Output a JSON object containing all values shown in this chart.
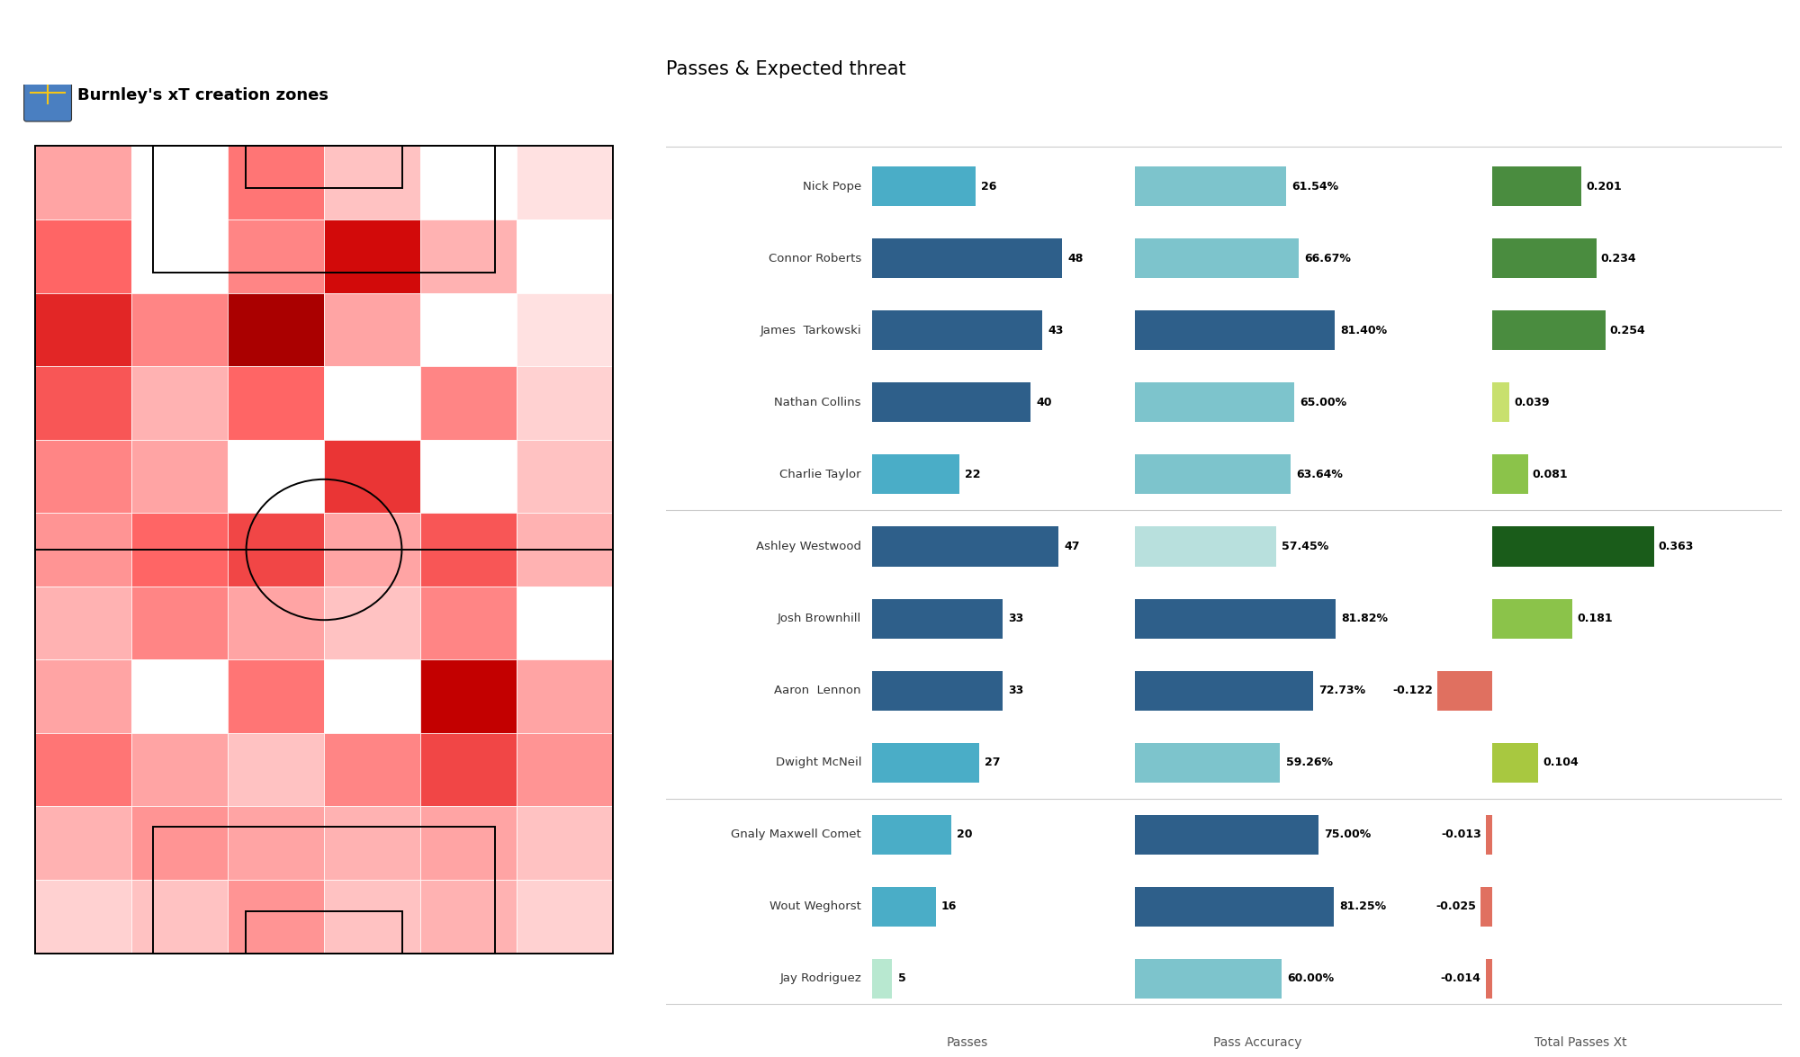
{
  "title_left": "Burnley's xT creation zones",
  "title_right": "Passes & Expected threat",
  "players": [
    {
      "name": "Nick Pope",
      "passes": 26,
      "pass_acc": 61.54,
      "xT": 0.201
    },
    {
      "name": "Connor Roberts",
      "passes": 48,
      "pass_acc": 66.67,
      "xT": 0.234
    },
    {
      "name": "James  Tarkowski",
      "passes": 43,
      "pass_acc": 81.4,
      "xT": 0.254
    },
    {
      "name": "Nathan Collins",
      "passes": 40,
      "pass_acc": 65.0,
      "xT": 0.039
    },
    {
      "name": "Charlie Taylor",
      "passes": 22,
      "pass_acc": 63.64,
      "xT": 0.081
    },
    {
      "name": "Ashley Westwood",
      "passes": 47,
      "pass_acc": 57.45,
      "xT": 0.363
    },
    {
      "name": "Josh Brownhill",
      "passes": 33,
      "pass_acc": 81.82,
      "xT": 0.181
    },
    {
      "name": "Aaron  Lennon",
      "passes": 33,
      "pass_acc": 72.73,
      "xT": -0.122
    },
    {
      "name": "Dwight McNeil",
      "passes": 27,
      "pass_acc": 59.26,
      "xT": 0.104
    },
    {
      "name": "Gnaly Maxwell Comet",
      "passes": 20,
      "pass_acc": 75.0,
      "xT": -0.013
    },
    {
      "name": "Wout Weghorst",
      "passes": 16,
      "pass_acc": 81.25,
      "xT": -0.025
    },
    {
      "name": "Jay Rodriguez",
      "passes": 5,
      "pass_acc": 60.0,
      "xT": -0.014
    }
  ],
  "passes_colors": {
    "Nick Pope": "#4aadc7",
    "Connor Roberts": "#2e5f8a",
    "James  Tarkowski": "#2e5f8a",
    "Nathan Collins": "#2e5f8a",
    "Charlie Taylor": "#4aadc7",
    "Ashley Westwood": "#2e5f8a",
    "Josh Brownhill": "#2e5f8a",
    "Aaron  Lennon": "#2e5f8a",
    "Dwight McNeil": "#4aadc7",
    "Gnaly Maxwell Comet": "#4aadc7",
    "Wout Weghorst": "#4aadc7",
    "Jay Rodriguez": "#b8e8d0"
  },
  "acc_colors": {
    "Nick Pope": "#7dc4cc",
    "Connor Roberts": "#7dc4cc",
    "James  Tarkowski": "#2e5f8a",
    "Nathan Collins": "#7dc4cc",
    "Charlie Taylor": "#7dc4cc",
    "Ashley Westwood": "#b8e0dd",
    "Josh Brownhill": "#2e5f8a",
    "Aaron  Lennon": "#2e5f8a",
    "Dwight McNeil": "#7dc4cc",
    "Gnaly Maxwell Comet": "#2e5f8a",
    "Wout Weghorst": "#2e5f8a",
    "Jay Rodriguez": "#7dc4cc"
  },
  "xT_colors": {
    "Nick Pope": "#4a8c3f",
    "Connor Roberts": "#4a8c3f",
    "James  Tarkowski": "#4a8c3f",
    "Nathan Collins": "#c8e06e",
    "Charlie Taylor": "#8bc34a",
    "Ashley Westwood": "#1a5c1a",
    "Josh Brownhill": "#8bc34a",
    "Aaron  Lennon": "#e07060",
    "Dwight McNeil": "#a8c840",
    "Gnaly Maxwell Comet": "#e07060",
    "Wout Weghorst": "#e07060",
    "Jay Rodriguez": "#e07060"
  },
  "separator_after": [
    4,
    8
  ],
  "heatmap": [
    [
      0.3,
      0.0,
      0.45,
      0.2,
      0.0,
      0.1
    ],
    [
      0.5,
      0.0,
      0.4,
      0.8,
      0.25,
      0.0
    ],
    [
      0.7,
      0.4,
      0.9,
      0.3,
      0.0,
      0.1
    ],
    [
      0.55,
      0.25,
      0.5,
      0.0,
      0.4,
      0.15
    ],
    [
      0.4,
      0.3,
      0.0,
      0.65,
      0.0,
      0.2
    ],
    [
      0.35,
      0.5,
      0.6,
      0.3,
      0.55,
      0.25
    ],
    [
      0.25,
      0.4,
      0.3,
      0.2,
      0.4,
      0.0
    ],
    [
      0.3,
      0.0,
      0.45,
      0.0,
      0.85,
      0.3
    ],
    [
      0.45,
      0.3,
      0.2,
      0.4,
      0.6,
      0.35
    ],
    [
      0.25,
      0.35,
      0.3,
      0.25,
      0.3,
      0.2
    ],
    [
      0.15,
      0.2,
      0.35,
      0.2,
      0.25,
      0.15
    ]
  ]
}
